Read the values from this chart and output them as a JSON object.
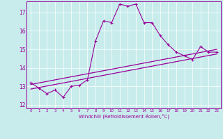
{
  "xlabel": "Windchill (Refroidissement éolien,°C)",
  "background_color": "#c8ecec",
  "line_color": "#990099",
  "xlim": [
    -0.5,
    23.5
  ],
  "ylim": [
    11.8,
    17.6
  ],
  "yticks": [
    12,
    13,
    14,
    15,
    16,
    17
  ],
  "xticks": [
    0,
    1,
    2,
    3,
    4,
    5,
    6,
    7,
    8,
    9,
    10,
    11,
    12,
    13,
    14,
    15,
    16,
    17,
    18,
    19,
    20,
    21,
    22,
    23
  ],
  "series1_x": [
    0,
    1,
    2,
    3,
    4,
    5,
    6,
    7,
    8,
    9,
    10,
    11,
    12,
    13,
    14,
    15,
    16,
    17,
    18,
    19,
    20,
    21,
    22,
    23
  ],
  "series1_y": [
    13.2,
    12.9,
    12.6,
    12.8,
    12.4,
    13.0,
    13.05,
    13.35,
    15.45,
    16.55,
    16.45,
    17.45,
    17.35,
    17.45,
    16.45,
    16.45,
    15.75,
    15.25,
    14.85,
    14.65,
    14.45,
    15.15,
    14.85,
    14.85
  ],
  "series2_x": [
    0,
    23
  ],
  "series2_y": [
    12.85,
    14.75
  ],
  "series3_x": [
    0,
    23
  ],
  "series3_y": [
    13.1,
    15.0
  ]
}
